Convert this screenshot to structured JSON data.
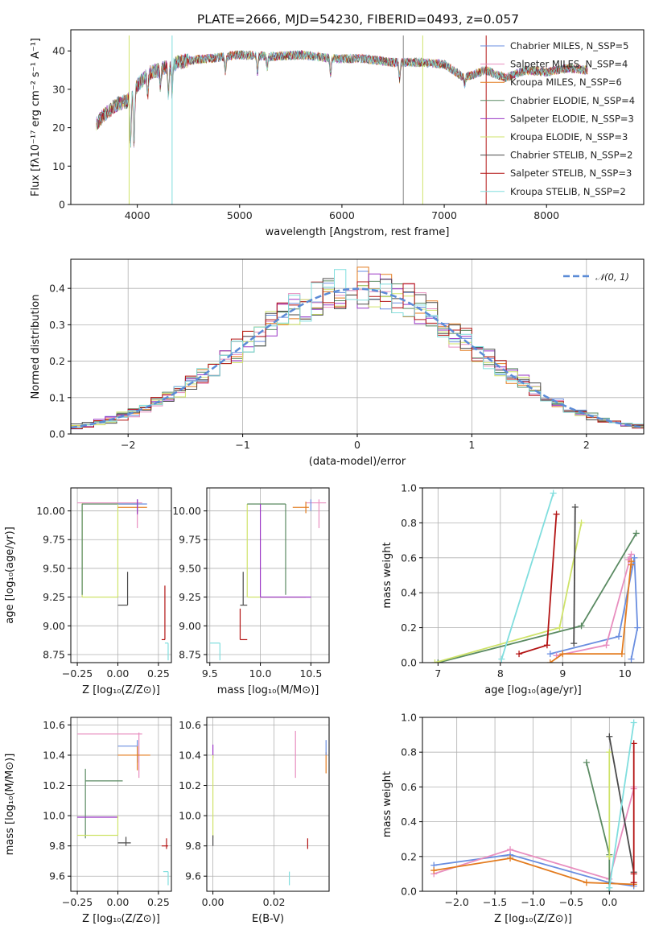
{
  "figure": {
    "title": "PLATE=2666, MJD=54230, FIBERID=0493, z=0.057"
  },
  "chart_data": [
    {
      "id": "spectrum",
      "type": "line",
      "xlabel": "wavelength [Angstrom, rest frame]",
      "ylabel": "Flux [fλ10⁻¹⁷ erg cm⁻² s⁻¹ A⁻¹]",
      "xlim": [
        3350,
        8950
      ],
      "ylim": [
        0,
        45.5
      ],
      "xticks": [
        4000,
        5000,
        6000,
        7000,
        8000
      ],
      "yticks": [
        0,
        10,
        20,
        30,
        40
      ],
      "grid": false,
      "legend_position": "top-right",
      "continuum": {
        "x": [
          3600,
          3700,
          3800,
          3900,
          4000,
          4100,
          4200,
          4300,
          4400,
          4500,
          4700,
          5000,
          5300,
          5600,
          5900,
          6200,
          6500,
          6800,
          7000,
          7200,
          7400,
          7600,
          7800,
          8000,
          8200,
          8400
        ],
        "y": [
          21,
          24,
          26,
          27,
          31,
          34,
          35,
          36,
          37,
          37.5,
          38,
          39,
          38.5,
          39,
          38,
          38,
          37,
          37,
          36.5,
          33,
          35,
          33,
          35,
          34.5,
          35.5,
          35
        ]
      },
      "series": [
        {
          "name": "Chabrier MILES, N_SSP=5",
          "color": "#6a8ee0"
        },
        {
          "name": "Salpeter MILES, N_SSP=4",
          "color": "#e88ebf"
        },
        {
          "name": "Kroupa MILES, N_SSP=6",
          "color": "#e37b1e"
        },
        {
          "name": "Chabrier ELODIE, N_SSP=4",
          "color": "#5a8a62"
        },
        {
          "name": "Salpeter ELODIE, N_SSP=3",
          "color": "#9a36c5"
        },
        {
          "name": "Kroupa ELODIE, N_SSP=3",
          "color": "#cfe36a"
        },
        {
          "name": "Chabrier STELIB, N_SSP=2",
          "color": "#4a4a4a"
        },
        {
          "name": "Salpeter STELIB, N_SSP=3",
          "color": "#b31414"
        },
        {
          "name": "Kroupa STELIB, N_SSP=2",
          "color": "#80dede"
        }
      ]
    },
    {
      "id": "residuals",
      "type": "line",
      "xlabel": "(data-model)/error",
      "ylabel": "Normed distribution",
      "xlim": [
        -2.5,
        2.5
      ],
      "ylim": [
        0,
        0.48
      ],
      "xticks": [
        -2,
        -1,
        0,
        1,
        2
      ],
      "xtick_labels": [
        "−2",
        "−1",
        "0",
        "1",
        "2"
      ],
      "yticks": [
        0.0,
        0.1,
        0.2,
        0.3,
        0.4
      ],
      "ytick_labels": [
        "0.0",
        "0.1",
        "0.2",
        "0.3",
        "0.4"
      ],
      "grid": true,
      "legend_position": "top-right",
      "normal_label": "𝒩(0, 1)",
      "normal_color": "#5b8bd6",
      "bin_width": 0.1
    },
    {
      "id": "age_vs_Z",
      "type": "scatter",
      "xlabel": "Z [log₁₀(Z/Z⊙)]",
      "ylabel": "age  [log₁₀(age/yr)]",
      "xlim": [
        -0.29,
        0.33
      ],
      "ylim": [
        8.68,
        10.2
      ],
      "xticks": [
        -0.25,
        0.0,
        0.25
      ],
      "xtick_labels": [
        "−0.25",
        "0.00",
        "0.25"
      ],
      "yticks": [
        8.75,
        9.0,
        9.25,
        9.5,
        9.75,
        10.0
      ],
      "ytick_labels": [
        "8.75",
        "9.00",
        "9.25",
        "9.50",
        "9.75",
        "10.00"
      ],
      "grid": true
    },
    {
      "id": "age_vs_mass",
      "type": "scatter",
      "xlabel": "mass [log₁₀(M/M⊙)]",
      "xlim": [
        9.47,
        10.68
      ],
      "ylim": [
        8.68,
        10.2
      ],
      "xticks": [
        9.5,
        10.0,
        10.5
      ],
      "xtick_labels": [
        "9.5",
        "10.0",
        "10.5"
      ],
      "yticks": [
        8.75,
        9.0,
        9.25,
        9.5,
        9.75,
        10.0
      ],
      "ytick_labels": [
        "8.75",
        "9.00",
        "9.25",
        "9.50",
        "9.75",
        "10.00"
      ],
      "grid": true
    },
    {
      "id": "weight_vs_age",
      "type": "line",
      "xlabel": "age  [log₁₀(age/yr)]",
      "ylabel": "mass weight",
      "xlim": [
        6.75,
        10.3
      ],
      "ylim": [
        0,
        1
      ],
      "xticks": [
        7,
        8,
        9,
        10
      ],
      "yticks": [
        0.0,
        0.2,
        0.4,
        0.6,
        0.8,
        1.0
      ],
      "ytick_labels": [
        "0.0",
        "0.2",
        "0.4",
        "0.6",
        "0.8",
        "1.0"
      ],
      "grid": true,
      "series": [
        {
          "name": "Chabrier MILES",
          "color": "#6a8ee0",
          "x": [
            8.8,
            9.9,
            10.15,
            10.2,
            10.1
          ],
          "y": [
            0.05,
            0.15,
            0.6,
            0.2,
            0.02
          ]
        },
        {
          "name": "Salpeter MILES",
          "color": "#e88ebf",
          "x": [
            8.9,
            9.7,
            10.1,
            10.05
          ],
          "y": [
            0.04,
            0.1,
            0.62,
            0.59
          ]
        },
        {
          "name": "Kroupa MILES",
          "color": "#e37b1e",
          "x": [
            8.8,
            9.0,
            9.95,
            10.1,
            10.1
          ],
          "y": [
            0.0,
            0.05,
            0.05,
            0.58,
            0.56
          ]
        },
        {
          "name": "Chabrier ELODIE",
          "color": "#5a8a62",
          "x": [
            7.0,
            9.3,
            10.18
          ],
          "y": [
            0.0,
            0.21,
            0.74
          ]
        },
        {
          "name": "Kroupa ELODIE",
          "color": "#cfe36a",
          "x": [
            6.95,
            8.95,
            9.3
          ],
          "y": [
            0.0,
            0.2,
            0.8
          ]
        },
        {
          "name": "Chabrier STELIB",
          "color": "#4a4a4a",
          "x": [
            9.18,
            9.2
          ],
          "y": [
            0.11,
            0.89
          ]
        },
        {
          "name": "Salpeter STELIB",
          "color": "#b31414",
          "x": [
            8.3,
            8.75,
            8.9
          ],
          "y": [
            0.05,
            0.1,
            0.85
          ]
        },
        {
          "name": "Kroupa STELIB",
          "color": "#80dede",
          "x": [
            8.02,
            8.85
          ],
          "y": [
            0.02,
            0.97
          ]
        }
      ]
    },
    {
      "id": "mass_vs_Z",
      "type": "scatter",
      "xlabel": "Z [log₁₀(Z/Z⊙)]",
      "ylabel": "mass [log₁₀(M/M⊙)]",
      "xlim": [
        -0.29,
        0.33
      ],
      "ylim": [
        9.5,
        10.65
      ],
      "xticks": [
        -0.25,
        0.0,
        0.25
      ],
      "xtick_labels": [
        "−0.25",
        "0.00",
        "0.25"
      ],
      "yticks": [
        9.6,
        9.8,
        10.0,
        10.2,
        10.4,
        10.6
      ],
      "ytick_labels": [
        "9.6",
        "9.8",
        "10.0",
        "10.2",
        "10.4",
        "10.6"
      ],
      "grid": true
    },
    {
      "id": "mass_vs_ebv",
      "type": "scatter",
      "xlabel": "E(B-V)",
      "xlim": [
        -0.002,
        0.038
      ],
      "ylim": [
        9.5,
        10.65
      ],
      "xticks": [
        0.0,
        0.02
      ],
      "xtick_labels": [
        "0.00",
        "0.02"
      ],
      "yticks": [
        9.6,
        9.8,
        10.0,
        10.2,
        10.4,
        10.6
      ],
      "ytick_labels": [
        "9.6",
        "9.8",
        "10.0",
        "10.2",
        "10.4",
        "10.6"
      ],
      "grid": true
    },
    {
      "id": "weight_vs_Z",
      "type": "line",
      "xlabel": "Z [log₁₀(Z/Z⊙)]",
      "ylabel": "mass weight",
      "xlim": [
        -2.45,
        0.45
      ],
      "ylim": [
        0,
        1
      ],
      "xticks": [
        -2.0,
        -1.5,
        -1.0,
        -0.5,
        0.0
      ],
      "xtick_labels": [
        "−2.0",
        "−1.5",
        "−1.0",
        "−0.5",
        "0.0"
      ],
      "yticks": [
        0.0,
        0.2,
        0.4,
        0.6,
        0.8,
        1.0
      ],
      "ytick_labels": [
        "0.0",
        "0.2",
        "0.4",
        "0.6",
        "0.8",
        "1.0"
      ],
      "grid": true,
      "series": [
        {
          "name": "Chabrier MILES",
          "color": "#6a8ee0",
          "x": [
            -2.3,
            -1.3,
            0.0,
            0.32
          ],
          "y": [
            0.15,
            0.21,
            0.05,
            0.03
          ]
        },
        {
          "name": "Salpeter MILES",
          "color": "#e88ebf",
          "x": [
            -2.3,
            -1.3,
            0.0,
            0.32,
            0.32
          ],
          "y": [
            0.1,
            0.24,
            0.07,
            0.59,
            0.6
          ]
        },
        {
          "name": "Kroupa MILES",
          "color": "#e37b1e",
          "x": [
            -2.3,
            -1.3,
            -0.3,
            0.32
          ],
          "y": [
            0.12,
            0.19,
            0.05,
            0.04
          ]
        },
        {
          "name": "Chabrier ELODIE",
          "color": "#5a8a62",
          "x": [
            -0.3,
            0.0,
            0.0
          ],
          "y": [
            0.74,
            0.21,
            0.0
          ]
        },
        {
          "name": "Kroupa ELODIE",
          "color": "#cfe36a",
          "x": [
            0.0,
            0.0
          ],
          "y": [
            0.2,
            0.8
          ]
        },
        {
          "name": "Chabrier STELIB",
          "color": "#4a4a4a",
          "x": [
            0.0,
            0.32
          ],
          "y": [
            0.89,
            0.11
          ]
        },
        {
          "name": "Salpeter STELIB",
          "color": "#b31414",
          "x": [
            0.32,
            0.32,
            0.32
          ],
          "y": [
            0.85,
            0.1,
            0.05
          ]
        },
        {
          "name": "Kroupa STELIB",
          "color": "#80dede",
          "x": [
            0.0,
            0.32
          ],
          "y": [
            0.02,
            0.97
          ]
        }
      ]
    }
  ]
}
